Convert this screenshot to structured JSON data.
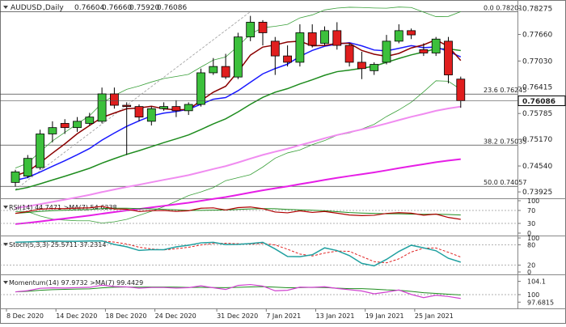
{
  "chart_data": {
    "type": "candlestick",
    "header": {
      "symbol": "AUDUSD",
      "timeframe": "Daily",
      "ohlc": [
        "0.76604",
        "0.76660",
        "0.75920",
        "0.76086"
      ]
    },
    "y_ticks": [
      "0.78275",
      "0.77660",
      "0.77030",
      "0.76415",
      "0.75785",
      "0.75170",
      "0.74540",
      "0.73925"
    ],
    "y_range": [
      0.7385,
      0.784
    ],
    "last_price": "0.76086",
    "fib_levels": [
      {
        "label": "0.0",
        "value": "0.78201"
      },
      {
        "label": "23.6",
        "value": "0.76245"
      },
      {
        "label": "38.2",
        "value": "0.75035"
      },
      {
        "label": "50.0",
        "value": "0.74057"
      }
    ],
    "x_labels": [
      "8 Dec 2020",
      "14 Dec 2020",
      "18 Dec 2020",
      "24 Dec 2020",
      "31 Dec 2020",
      "7 Jan 2021",
      "13 Jan 2021",
      "19 Jan 2021",
      "25 Jan 2021"
    ],
    "colors": {
      "up": "#3cc03c",
      "down": "#e01e1e",
      "sma_red": "#8b0000",
      "sma_blue": "#1a1aff",
      "sma_green": "#1e8c1e",
      "sma_pink": "#f08cf0",
      "sma_magenta": "#e61ee6",
      "bollinger": "#3aa03a",
      "rsi": "#b00000",
      "stoch_k": "#20a0a0",
      "momentum": "#d040d0"
    },
    "candles": [
      {
        "o": 0.7415,
        "h": 0.7445,
        "l": 0.7405,
        "c": 0.744
      },
      {
        "o": 0.743,
        "h": 0.748,
        "l": 0.7425,
        "c": 0.7472
      },
      {
        "o": 0.745,
        "h": 0.754,
        "l": 0.7445,
        "c": 0.753
      },
      {
        "o": 0.753,
        "h": 0.756,
        "l": 0.751,
        "c": 0.7545
      },
      {
        "o": 0.7555,
        "h": 0.7565,
        "l": 0.753,
        "c": 0.7545
      },
      {
        "o": 0.7545,
        "h": 0.757,
        "l": 0.7535,
        "c": 0.756
      },
      {
        "o": 0.7555,
        "h": 0.758,
        "l": 0.755,
        "c": 0.757
      },
      {
        "o": 0.756,
        "h": 0.764,
        "l": 0.7555,
        "c": 0.7625
      },
      {
        "o": 0.7625,
        "h": 0.764,
        "l": 0.759,
        "c": 0.7598
      },
      {
        "o": 0.7598,
        "h": 0.7605,
        "l": 0.748,
        "c": 0.7595
      },
      {
        "o": 0.7595,
        "h": 0.76,
        "l": 0.756,
        "c": 0.757
      },
      {
        "o": 0.756,
        "h": 0.7595,
        "l": 0.755,
        "c": 0.759
      },
      {
        "o": 0.759,
        "h": 0.7605,
        "l": 0.7585,
        "c": 0.7595
      },
      {
        "o": 0.7595,
        "h": 0.761,
        "l": 0.757,
        "c": 0.7585
      },
      {
        "o": 0.7585,
        "h": 0.7605,
        "l": 0.7575,
        "c": 0.76
      },
      {
        "o": 0.76,
        "h": 0.7685,
        "l": 0.7595,
        "c": 0.7675
      },
      {
        "o": 0.7675,
        "h": 0.771,
        "l": 0.767,
        "c": 0.769
      },
      {
        "o": 0.769,
        "h": 0.772,
        "l": 0.766,
        "c": 0.7665
      },
      {
        "o": 0.7665,
        "h": 0.777,
        "l": 0.766,
        "c": 0.776
      },
      {
        "o": 0.776,
        "h": 0.781,
        "l": 0.775,
        "c": 0.7795
      },
      {
        "o": 0.7795,
        "h": 0.78,
        "l": 0.774,
        "c": 0.777
      },
      {
        "o": 0.775,
        "h": 0.776,
        "l": 0.767,
        "c": 0.7715
      },
      {
        "o": 0.7715,
        "h": 0.774,
        "l": 0.769,
        "c": 0.77
      },
      {
        "o": 0.77,
        "h": 0.779,
        "l": 0.769,
        "c": 0.777
      },
      {
        "o": 0.777,
        "h": 0.779,
        "l": 0.7735,
        "c": 0.774
      },
      {
        "o": 0.7745,
        "h": 0.7785,
        "l": 0.774,
        "c": 0.7775
      },
      {
        "o": 0.7775,
        "h": 0.7795,
        "l": 0.773,
        "c": 0.774
      },
      {
        "o": 0.774,
        "h": 0.7745,
        "l": 0.769,
        "c": 0.77
      },
      {
        "o": 0.77,
        "h": 0.7725,
        "l": 0.766,
        "c": 0.7685
      },
      {
        "o": 0.768,
        "h": 0.77,
        "l": 0.767,
        "c": 0.7695
      },
      {
        "o": 0.77,
        "h": 0.7765,
        "l": 0.7695,
        "c": 0.775
      },
      {
        "o": 0.775,
        "h": 0.779,
        "l": 0.7745,
        "c": 0.7775
      },
      {
        "o": 0.7775,
        "h": 0.778,
        "l": 0.7755,
        "c": 0.7765
      },
      {
        "o": 0.773,
        "h": 0.7745,
        "l": 0.7715,
        "c": 0.7722
      },
      {
        "o": 0.7722,
        "h": 0.776,
        "l": 0.7715,
        "c": 0.7755
      },
      {
        "o": 0.775,
        "h": 0.776,
        "l": 0.765,
        "c": 0.767
      },
      {
        "o": 0.766,
        "h": 0.7666,
        "l": 0.7592,
        "c": 0.7609
      }
    ],
    "indicators": {
      "rsi": {
        "label": "RSI(14) 44.7471 >MA(7) 54.6238",
        "levels": [
          70,
          30
        ],
        "ticks": [
          "100",
          "70",
          "30",
          "0"
        ],
        "range": [
          0,
          100
        ]
      },
      "stoch": {
        "label": "Stoch(5,3,3) 25.5711 37.2314",
        "levels": [
          80,
          20
        ],
        "ticks": [
          "100",
          "80",
          "20",
          "0"
        ],
        "range": [
          0,
          100
        ]
      },
      "momentum": {
        "label": "Momentum(14) 97.9732 >MA(7) 99.4429",
        "ticks": [
          "104.1",
          "100",
          "97.6815"
        ],
        "range": [
          96.5,
          105.5
        ]
      }
    }
  }
}
